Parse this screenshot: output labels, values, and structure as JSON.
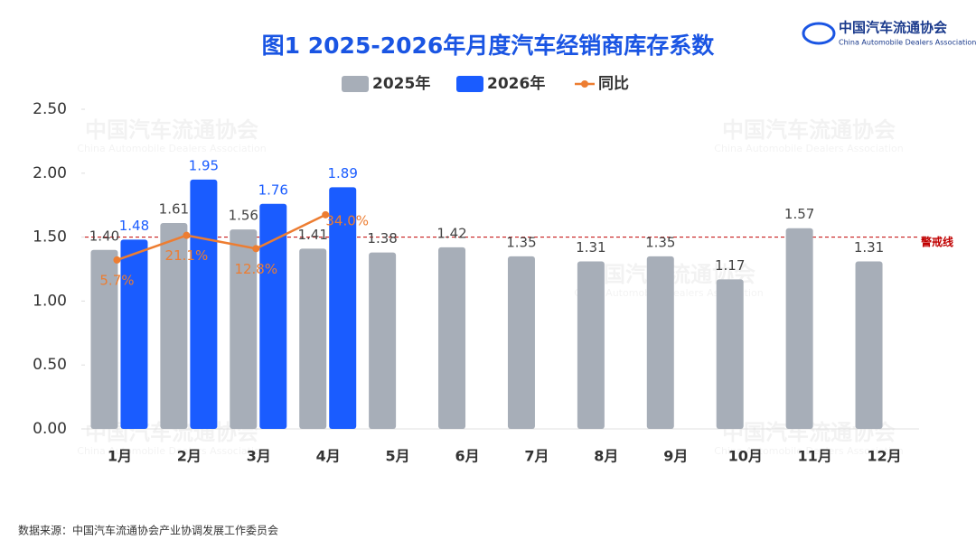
{
  "chart_data": {
    "type": "bar",
    "title": "图1  2025-2026年月度汽车经销商库存系数",
    "logo": {
      "name": "中国汽车流通协会",
      "subtitle": "China Automobile Dealers Association"
    },
    "source": "数据来源：中国汽车流通协会产业协调发展工作委员会",
    "categories": [
      "1月",
      "2月",
      "3月",
      "4月",
      "5月",
      "6月",
      "7月",
      "8月",
      "9月",
      "10月",
      "11月",
      "12月"
    ],
    "series": [
      {
        "name": "2025年",
        "type": "bar",
        "color": "#a7aeb8",
        "values": [
          1.4,
          1.61,
          1.56,
          1.41,
          1.38,
          1.42,
          1.35,
          1.31,
          1.35,
          1.17,
          1.57,
          1.31
        ],
        "value_labels": [
          "1.40",
          "1.61",
          "1.56",
          "1.41",
          "1.38",
          "1.42",
          "1.35",
          "1.31",
          "1.35",
          "1.17",
          "1.57",
          "1.31"
        ]
      },
      {
        "name": "2026年",
        "type": "bar",
        "color": "#1a5cff",
        "values": [
          1.48,
          1.95,
          1.76,
          1.89,
          null,
          null,
          null,
          null,
          null,
          null,
          null,
          null
        ]
      },
      {
        "name": "同比",
        "type": "line",
        "axis": "y2",
        "color": "#ed7d31",
        "values": [
          5.7,
          21.1,
          12.8,
          34.0,
          null,
          null,
          null,
          null,
          null,
          null,
          null,
          null
        ],
        "value_labels": [
          "5.7%",
          "21.1%",
          "12.8%",
          "34.0%",
          null,
          null,
          null,
          null,
          null,
          null,
          null,
          null
        ]
      }
    ],
    "ylim": [
      0,
      2.5
    ],
    "yticks": [
      {
        "value": 0,
        "label": "0.00"
      },
      {
        "value": 0.5,
        "label": "0.50"
      },
      {
        "value": 1,
        "label": "1.00"
      },
      {
        "value": 1.5,
        "label": "1.50"
      },
      {
        "value": 2,
        "label": "2.00"
      },
      {
        "value": 2.5,
        "label": "2.50"
      }
    ],
    "y2lim": [
      -100,
      100
    ],
    "threshold": {
      "value": 1.5,
      "label": "警戒线",
      "color": "#c00000"
    },
    "grid": false,
    "legend": "top"
  }
}
